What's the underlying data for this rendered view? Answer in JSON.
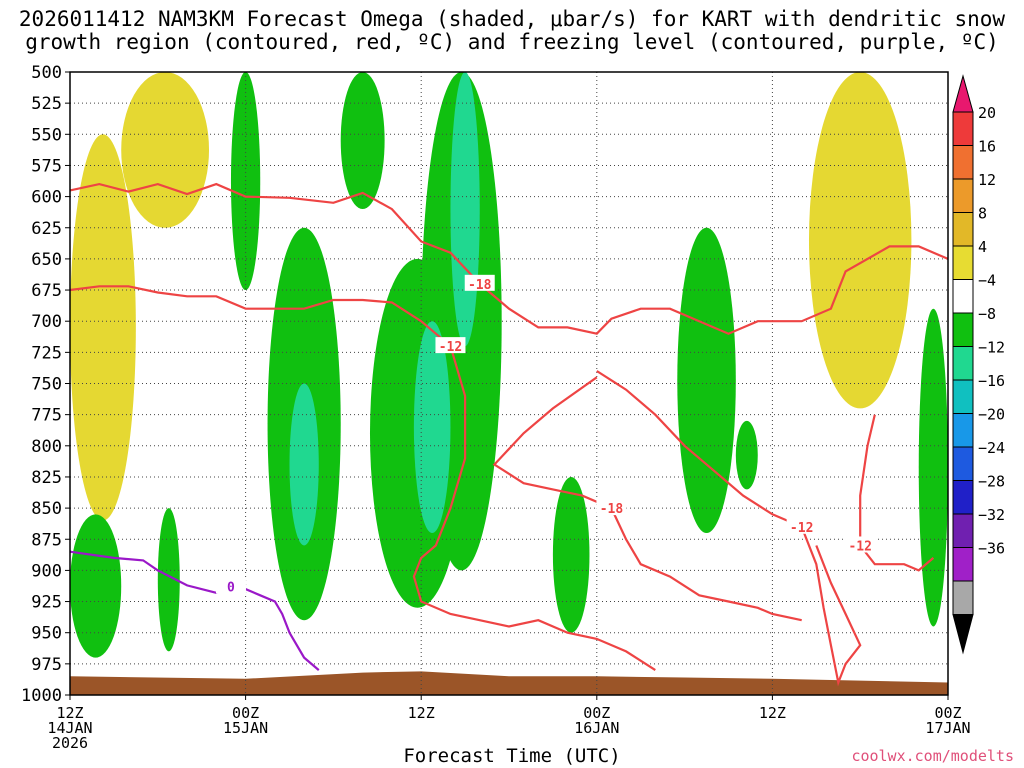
{
  "chart_data": {
    "type": "heatmap",
    "title_line1": "2026011412 NAM3KM Forecast Omega (shaded, μbar/s) for KART with dendritic snow",
    "title_line2": "growth region (contoured, red, ºC) and freezing level (contoured, purple, ºC)",
    "xlabel": "Forecast Time (UTC)",
    "credit": "coolwx.com/modelts",
    "x_ticks": [
      {
        "hour": 0,
        "line1": "12Z",
        "line2": "14JAN",
        "line3": "2026"
      },
      {
        "hour": 12,
        "line1": "00Z",
        "line2": "15JAN",
        "line3": ""
      },
      {
        "hour": 24,
        "line1": "12Z",
        "line2": "",
        "line3": ""
      },
      {
        "hour": 36,
        "line1": "00Z",
        "line2": "16JAN",
        "line3": ""
      },
      {
        "hour": 48,
        "line1": "12Z",
        "line2": "",
        "line3": ""
      },
      {
        "hour": 60,
        "line1": "00Z",
        "line2": "17JAN",
        "line3": ""
      }
    ],
    "x_range_hours": [
      0,
      60
    ],
    "y_ticks": [
      "500",
      "525",
      "550",
      "575",
      "600",
      "625",
      "650",
      "675",
      "700",
      "725",
      "750",
      "775",
      "800",
      "825",
      "850",
      "875",
      "900",
      "925",
      "950",
      "975",
      "1000"
    ],
    "y_range_mb": [
      500,
      1000
    ],
    "colorbar": {
      "labels": [
        "20",
        "16",
        "12",
        "8",
        "4",
        "−4",
        "−8",
        "−12",
        "−16",
        "−20",
        "−24",
        "−28",
        "−32",
        "−36"
      ],
      "colors": [
        "#e8186e",
        "#ee3a3a",
        "#f07030",
        "#ec9a2a",
        "#e2b828",
        "#e7dc32",
        "#ffffff",
        "#10c010",
        "#20d890",
        "#10c0c0",
        "#1898e8",
        "#1e5ae0",
        "#2020c8",
        "#7020b0",
        "#a020c8",
        "#a8a8a8",
        "#000000"
      ]
    },
    "shaded_regions": [
      {
        "name": "lift-early-upper",
        "level": "4",
        "hours": [
          3.5,
          9.5
        ],
        "pressure": [
          500,
          625
        ]
      },
      {
        "name": "lift-early-mid",
        "level": "4",
        "hours": [
          0.0,
          4.5
        ],
        "pressure": [
          550,
          860
        ]
      },
      {
        "name": "lift-late",
        "level": "4",
        "hours": [
          50.5,
          57.5
        ],
        "pressure": [
          500,
          770
        ]
      },
      {
        "name": "sink-early-lower",
        "level": "-4",
        "hours": [
          0.0,
          3.5
        ],
        "pressure": [
          855,
          970
        ]
      },
      {
        "name": "sink-lower-2",
        "level": "-4",
        "hours": [
          6.0,
          7.5
        ],
        "pressure": [
          850,
          965
        ]
      },
      {
        "name": "sink-d15-a",
        "level": "-4",
        "hours": [
          13.5,
          18.5
        ],
        "pressure": [
          625,
          940
        ]
      },
      {
        "name": "sink-d15-b",
        "level": "-8",
        "hours": [
          15.0,
          17.0
        ],
        "pressure": [
          750,
          880
        ]
      },
      {
        "name": "sink-top-a",
        "level": "-4",
        "hours": [
          11.0,
          13.0
        ],
        "pressure": [
          500,
          675
        ]
      },
      {
        "name": "sink-top-b",
        "level": "-4",
        "hours": [
          18.5,
          21.5
        ],
        "pressure": [
          500,
          610
        ]
      },
      {
        "name": "sink-mid-c",
        "level": "-4",
        "hours": [
          20.5,
          27.0
        ],
        "pressure": [
          650,
          930
        ]
      },
      {
        "name": "sink-mid-d",
        "level": "-4",
        "hours": [
          24.0,
          29.5
        ],
        "pressure": [
          500,
          900
        ]
      },
      {
        "name": "sink-mid-e",
        "level": "-8",
        "hours": [
          26.0,
          28.0
        ],
        "pressure": [
          500,
          720
        ]
      },
      {
        "name": "sink-mid-f",
        "level": "-8",
        "hours": [
          23.5,
          26.0
        ],
        "pressure": [
          700,
          870
        ]
      },
      {
        "name": "sink-d16-a",
        "level": "-4",
        "hours": [
          33.0,
          35.5
        ],
        "pressure": [
          825,
          950
        ]
      },
      {
        "name": "sink-d16-b",
        "level": "-4",
        "hours": [
          41.5,
          45.5
        ],
        "pressure": [
          625,
          870
        ]
      },
      {
        "name": "sink-d16-c",
        "level": "-4",
        "hours": [
          45.5,
          47.0
        ],
        "pressure": [
          780,
          835
        ]
      },
      {
        "name": "sink-d17-a",
        "level": "-4",
        "hours": [
          58.0,
          60.0
        ],
        "pressure": [
          690,
          945
        ]
      }
    ],
    "dgz_contours": [
      {
        "label": "-18",
        "points": [
          [
            0,
            595
          ],
          [
            2,
            590
          ],
          [
            4,
            596
          ],
          [
            6,
            590
          ],
          [
            8,
            598
          ],
          [
            10,
            590
          ],
          [
            12,
            600
          ],
          [
            15,
            601
          ],
          [
            18,
            605
          ],
          [
            20,
            597
          ],
          [
            22,
            610
          ],
          [
            24,
            636
          ],
          [
            26,
            645
          ],
          [
            28,
            670
          ],
          [
            30,
            690
          ],
          [
            32,
            705
          ],
          [
            34,
            705
          ],
          [
            36,
            710
          ],
          [
            37,
            698
          ],
          [
            39,
            690
          ],
          [
            41,
            690
          ],
          [
            43,
            700
          ],
          [
            45,
            710
          ],
          [
            47,
            700
          ],
          [
            50,
            700
          ],
          [
            52,
            690
          ],
          [
            53,
            660
          ],
          [
            56,
            640
          ],
          [
            58,
            640
          ],
          [
            60,
            650
          ]
        ]
      },
      {
        "label": "-12",
        "points": [
          [
            0,
            675
          ],
          [
            2,
            672
          ],
          [
            4,
            672
          ],
          [
            6,
            677
          ],
          [
            8,
            680
          ],
          [
            10,
            680
          ],
          [
            12,
            690
          ],
          [
            14,
            690
          ],
          [
            16,
            690
          ],
          [
            18,
            683
          ],
          [
            20,
            683
          ],
          [
            22,
            685
          ],
          [
            24,
            700
          ],
          [
            26,
            720
          ],
          [
            27,
            760
          ],
          [
            27,
            810
          ],
          [
            26,
            850
          ],
          [
            25,
            880
          ],
          [
            24,
            890
          ],
          [
            23.5,
            905
          ],
          [
            24,
            925
          ],
          [
            26,
            935
          ],
          [
            28,
            940
          ],
          [
            30,
            945
          ],
          [
            32,
            940
          ],
          [
            34,
            950
          ],
          [
            36,
            955
          ],
          [
            38,
            965
          ],
          [
            40,
            980
          ]
        ]
      },
      {
        "label": "-18",
        "points": [
          [
            36,
            745
          ],
          [
            33,
            770
          ],
          [
            31,
            790
          ],
          [
            29,
            815
          ],
          [
            31,
            830
          ],
          [
            33,
            835
          ],
          [
            35,
            840
          ],
          [
            37,
            850
          ],
          [
            38,
            875
          ],
          [
            39,
            895
          ],
          [
            41,
            905
          ],
          [
            43,
            920
          ],
          [
            45,
            925
          ],
          [
            47,
            930
          ],
          [
            48,
            935
          ],
          [
            50,
            940
          ]
        ]
      },
      {
        "label": "-12",
        "points": [
          [
            36,
            740
          ],
          [
            38,
            755
          ],
          [
            40,
            775
          ],
          [
            42,
            800
          ],
          [
            44,
            820
          ],
          [
            46,
            840
          ],
          [
            48,
            855
          ],
          [
            50,
            865
          ],
          [
            51,
            895
          ],
          [
            51.5,
            930
          ],
          [
            52,
            960
          ],
          [
            52.5,
            990
          ],
          [
            53,
            975
          ],
          [
            54,
            960
          ],
          [
            53,
            935
          ],
          [
            52,
            910
          ],
          [
            51,
            880
          ]
        ]
      },
      {
        "label": "-12",
        "points": [
          [
            55,
            775
          ],
          [
            54.5,
            800
          ],
          [
            54,
            840
          ],
          [
            54,
            880
          ],
          [
            55,
            895
          ],
          [
            57,
            895
          ],
          [
            58,
            900
          ],
          [
            59,
            890
          ]
        ]
      }
    ],
    "freezing_contours": [
      {
        "label": "0",
        "points": [
          [
            0,
            885
          ],
          [
            3,
            890
          ],
          [
            5,
            892
          ],
          [
            6,
            900
          ],
          [
            8,
            912
          ],
          [
            10,
            918
          ],
          [
            11,
            913
          ],
          [
            12,
            915
          ],
          [
            13,
            920
          ],
          [
            14,
            925
          ],
          [
            14.5,
            935
          ],
          [
            15,
            950
          ],
          [
            16,
            970
          ],
          [
            17,
            980
          ]
        ]
      }
    ],
    "terrain": {
      "color": "#9b5528",
      "points": [
        [
          0,
          985
        ],
        [
          12,
          987
        ],
        [
          20,
          982
        ],
        [
          24,
          981
        ],
        [
          30,
          985
        ],
        [
          36,
          985
        ],
        [
          42,
          986
        ],
        [
          48,
          987
        ],
        [
          60,
          990
        ]
      ]
    }
  }
}
